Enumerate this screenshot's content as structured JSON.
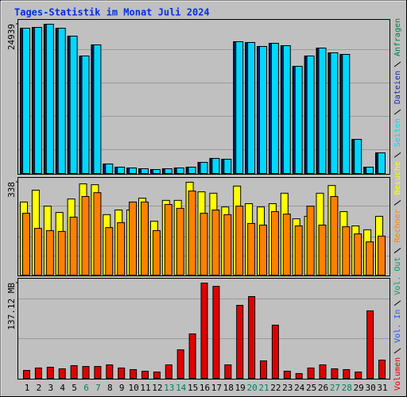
{
  "chart_data": [
    {
      "type": "bar",
      "title": "Tages-Statistik im Monat Juli 2024",
      "categories": [
        "1",
        "2",
        "3",
        "4",
        "5",
        "6",
        "7",
        "8",
        "9",
        "10",
        "11",
        "12",
        "13",
        "14",
        "15",
        "16",
        "17",
        "18",
        "19",
        "20",
        "21",
        "22",
        "23",
        "24",
        "25",
        "26",
        "27",
        "28",
        "29",
        "30",
        "31"
      ],
      "category_colors": [
        "#000000",
        "#000000",
        "#000000",
        "#000000",
        "#000000",
        "#008060",
        "#008060",
        "#000000",
        "#000000",
        "#000000",
        "#000000",
        "#000000",
        "#008060",
        "#008060",
        "#000000",
        "#000000",
        "#000000",
        "#000000",
        "#000000",
        "#008060",
        "#008060",
        "#000000",
        "#000000",
        "#000000",
        "#000000",
        "#000000",
        "#008060",
        "#008060",
        "#000000",
        "#000000",
        "#000000"
      ],
      "series": [
        {
          "name": "Anfragen",
          "color": "#008040",
          "values": [
            24275,
            24408,
            24939,
            24275,
            22950,
            19632,
            21490,
            1592,
            1061,
            929,
            796,
            663,
            796,
            929,
            1061,
            1857,
            2520,
            2388,
            22021,
            21888,
            21225,
            21755,
            21357,
            17908,
            19632,
            20959,
            20163,
            19898,
            5704,
            1061,
            3449
          ]
        },
        {
          "name": "Dateien",
          "color": "#1030a0",
          "values": [
            24275,
            24408,
            24939,
            24275,
            22950,
            19632,
            21490,
            1592,
            1061,
            929,
            796,
            663,
            796,
            929,
            1061,
            1857,
            2520,
            2388,
            22021,
            21888,
            21225,
            21755,
            21357,
            17908,
            19632,
            20959,
            20163,
            19898,
            5704,
            1061,
            3449
          ]
        },
        {
          "name": "Seiten",
          "color": "#00d8ff",
          "values": [
            24275,
            24408,
            24939,
            24275,
            22950,
            19632,
            21490,
            1592,
            1061,
            929,
            796,
            663,
            796,
            929,
            1061,
            1857,
            2520,
            2388,
            22021,
            21888,
            21225,
            21755,
            21357,
            17908,
            19632,
            20959,
            20163,
            19898,
            5704,
            1061,
            3449
          ]
        }
      ],
      "ylim": [
        0,
        24939
      ],
      "yticks": [
        24939
      ]
    },
    {
      "type": "bar",
      "series": [
        {
          "name": "Besuche",
          "color": "#ffff00",
          "values": [
            266,
            309,
            251,
            228,
            277,
            332,
            329,
            220,
            237,
            237,
            280,
            196,
            272,
            272,
            338,
            303,
            298,
            248,
            324,
            260,
            248,
            260,
            298,
            205,
            214,
            298,
            326,
            231,
            179,
            165,
            214
          ]
        },
        {
          "name": "Rechner",
          "color": "#ff8000",
          "values": [
            225,
            170,
            162,
            159,
            211,
            286,
            300,
            173,
            191,
            266,
            266,
            162,
            257,
            243,
            306,
            225,
            237,
            220,
            251,
            188,
            182,
            231,
            222,
            179,
            251,
            182,
            286,
            176,
            150,
            121,
            142
          ]
        }
      ],
      "ylim": [
        0,
        338
      ],
      "yticks": [
        338
      ]
    },
    {
      "type": "bar",
      "series": [
        {
          "name": "Volumen",
          "color": "#e00000",
          "values": [
            11.4,
            14.9,
            16.0,
            13.7,
            18.3,
            17.1,
            17.1,
            19.4,
            14.9,
            12.6,
            10.3,
            9.1,
            19.4,
            41.1,
            64.0,
            137.1,
            132.5,
            19.4,
            105.1,
            117.7,
            25.1,
            76.6,
            10.3,
            6.9,
            14.9,
            19.4,
            13.7,
            12.6,
            9.1,
            97.1,
            26.3
          ]
        }
      ],
      "other_legend": [
        {
          "name": "Vol. In",
          "color": "#2050ff"
        },
        {
          "name": "Vol. Out",
          "color": "#00a060"
        }
      ],
      "ylim": [
        0,
        137.12
      ],
      "yticks": [
        {
          "value": 137.12,
          "label": "137.12 MB"
        }
      ]
    }
  ]
}
